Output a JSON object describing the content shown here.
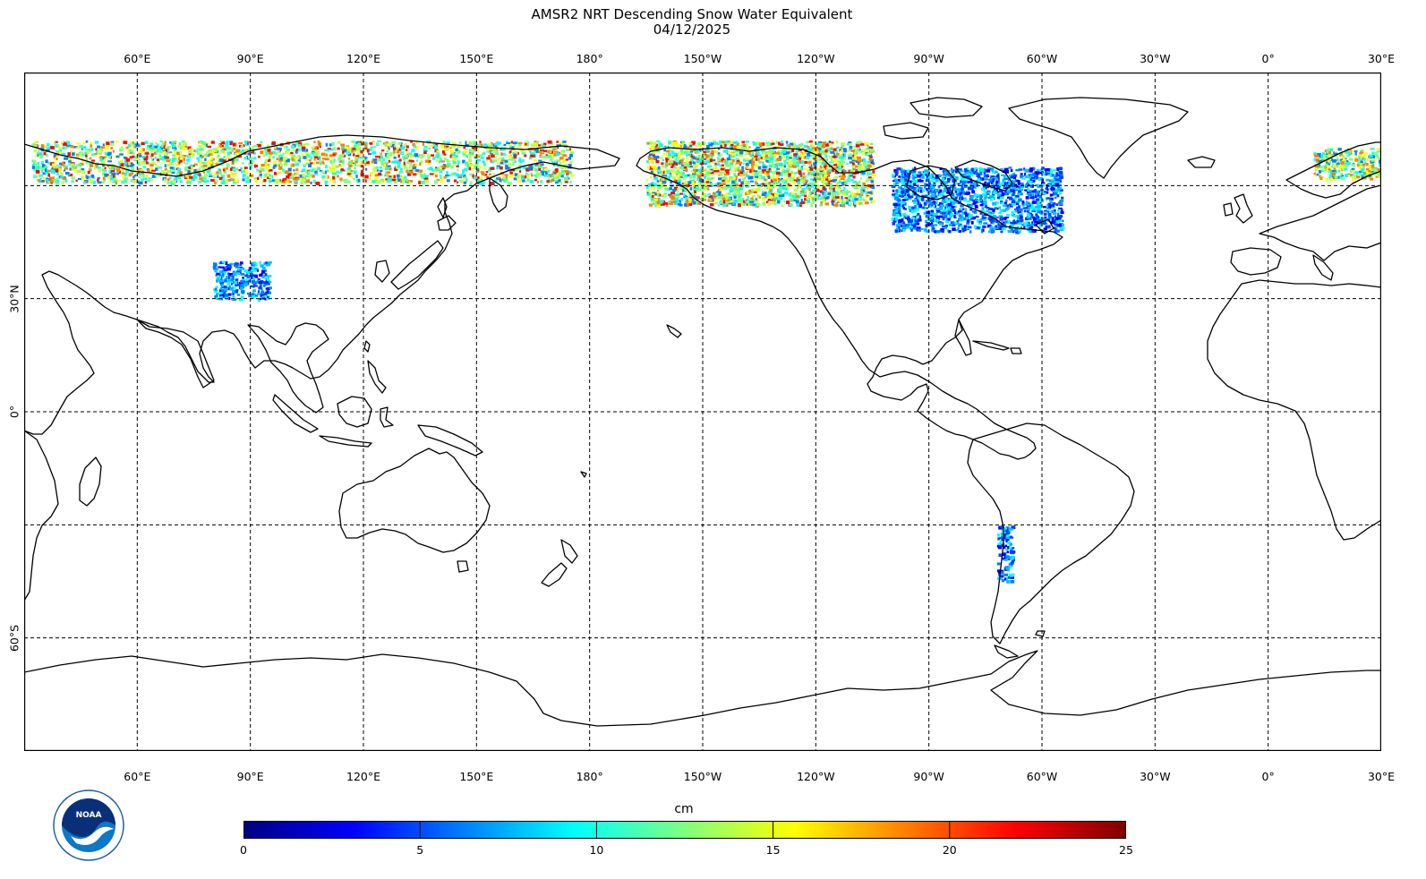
{
  "title": {
    "line1": "AMSR2 NRT Descending Snow Water Equivalent",
    "line2": "04/12/2025"
  },
  "map": {
    "projection": "equirectangular",
    "lon_range": [
      30,
      390
    ],
    "lat_range": [
      -90,
      90
    ],
    "lon_ticks": [
      {
        "label": "60°E",
        "lon": 60
      },
      {
        "label": "90°E",
        "lon": 90
      },
      {
        "label": "120°E",
        "lon": 120
      },
      {
        "label": "150°E",
        "lon": 150
      },
      {
        "label": "180°",
        "lon": 180
      },
      {
        "label": "150°W",
        "lon": 210
      },
      {
        "label": "120°W",
        "lon": 240
      },
      {
        "label": "90°W",
        "lon": 270
      },
      {
        "label": "60°W",
        "lon": 300
      },
      {
        "label": "30°W",
        "lon": 330
      },
      {
        "label": "0°",
        "lon": 360
      },
      {
        "label": "30°E",
        "lon": 390
      }
    ],
    "lat_ticks": [
      {
        "label": "30°N",
        "lat": 30
      },
      {
        "label": "0°",
        "lat": 0
      },
      {
        "label": "60°S",
        "lat": -60
      }
    ],
    "gridline_lats": [
      60,
      30,
      0,
      -30,
      -60
    ],
    "gridline_style": "dashed",
    "snow_regions": [
      {
        "name": "northern-asia",
        "lon": [
          32,
          175
        ],
        "lat": [
          61,
          72
        ],
        "dominant": "mixed-high"
      },
      {
        "name": "central-asia-plateau",
        "lon": [
          80,
          95
        ],
        "lat": [
          30,
          40
        ],
        "dominant": "low"
      },
      {
        "name": "alaska-canada-west",
        "lon": [
          195,
          255
        ],
        "lat": [
          55,
          72
        ],
        "dominant": "mixed-high"
      },
      {
        "name": "canada-east",
        "lon": [
          260,
          305
        ],
        "lat": [
          48,
          65
        ],
        "dominant": "low"
      },
      {
        "name": "andes",
        "lon": [
          288,
          292
        ],
        "lat": [
          -45,
          -30
        ],
        "dominant": "low"
      },
      {
        "name": "scandinavia",
        "lon": [
          372,
          390
        ],
        "lat": [
          62,
          70
        ],
        "dominant": "mixed"
      }
    ]
  },
  "colorbar": {
    "unit": "cm",
    "min": 0,
    "max": 25,
    "ticks": [
      "0",
      "5",
      "10",
      "15",
      "20",
      "25"
    ],
    "colormap": [
      "#00007f",
      "#0000ff",
      "#007fff",
      "#00ffff",
      "#7fff7f",
      "#ffff00",
      "#ff7f00",
      "#ff0000",
      "#7f0000"
    ]
  },
  "logo": {
    "name": "noaa-logo",
    "text": "NOAA"
  }
}
